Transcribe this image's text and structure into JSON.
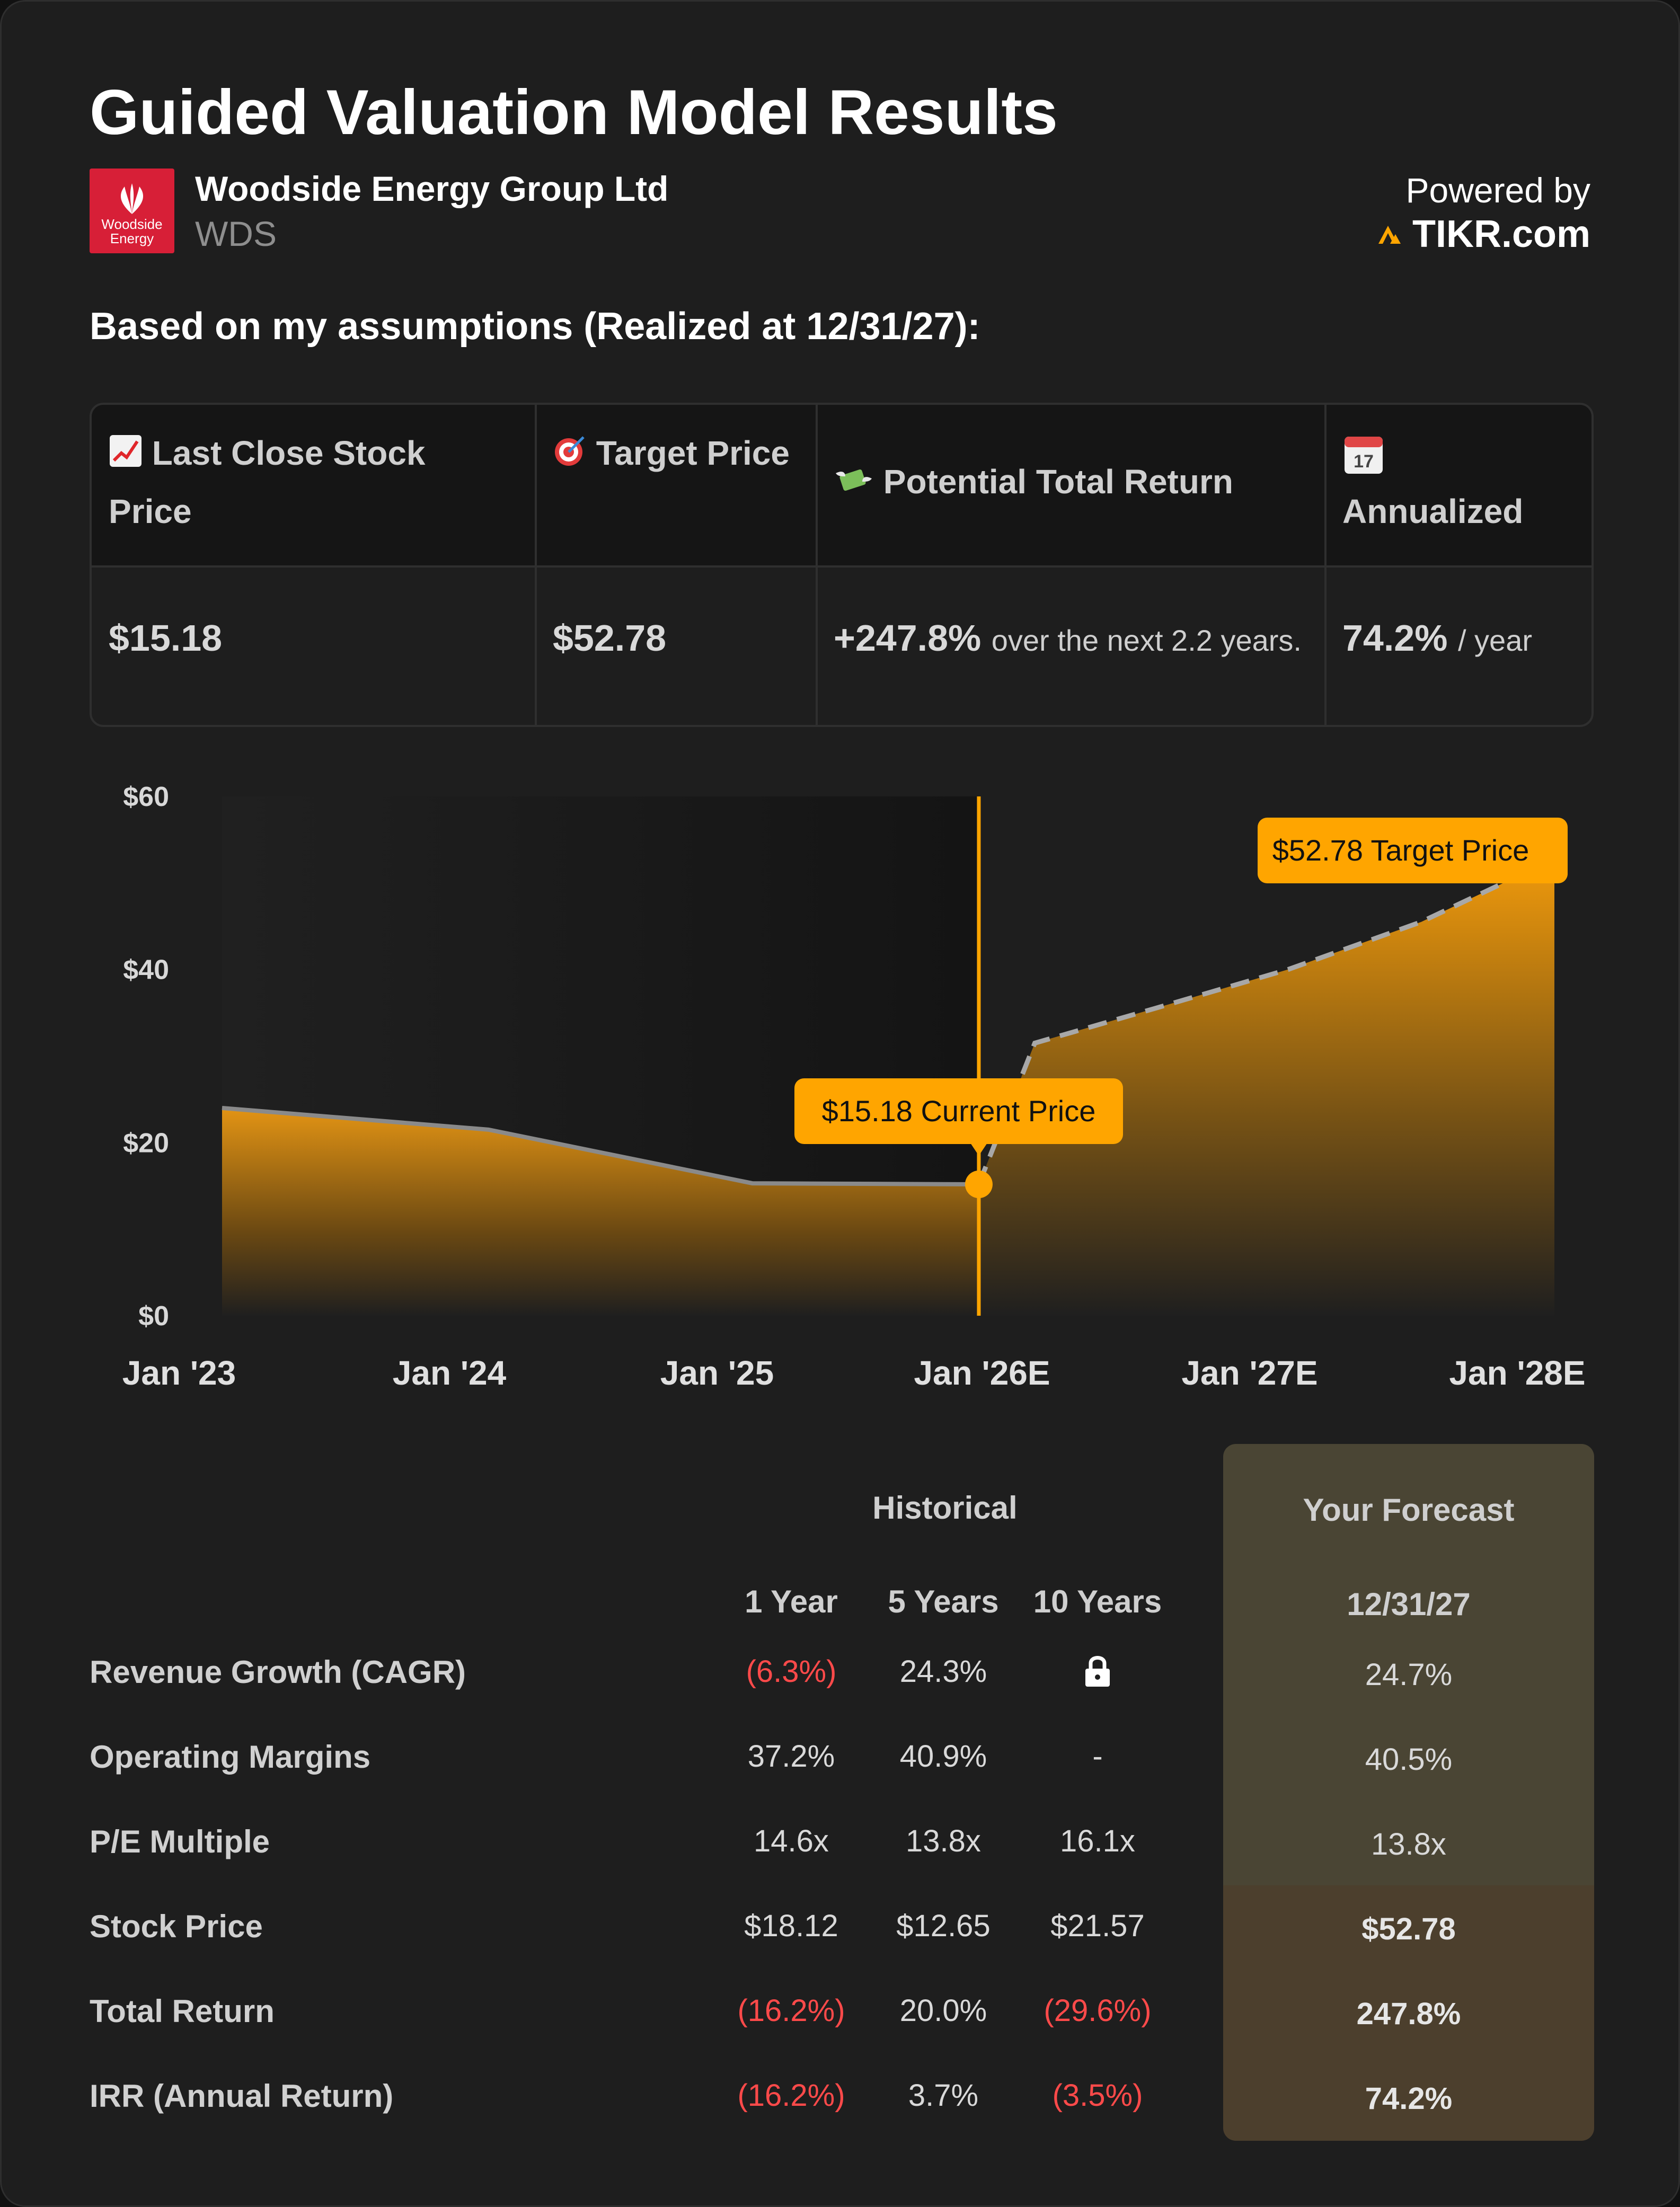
{
  "header": {
    "title": "Guided Valuation Model Results",
    "company_name": "Woodside Energy Group Ltd",
    "ticker": "WDS",
    "logo_text": "Woodside Energy",
    "powered_by": "Powered by",
    "brand": "TIKR.com"
  },
  "assumptions_label": "Based on my assumptions (Realized at 12/31/27):",
  "metrics": {
    "headers": [
      {
        "icon": "chart-increasing-icon",
        "label": "Last Close Stock Price"
      },
      {
        "icon": "target-icon",
        "label": "Target Price"
      },
      {
        "icon": "money-wings-icon",
        "label": "Potential Total Return"
      },
      {
        "icon": "calendar-icon",
        "label": "Annualized"
      }
    ],
    "last_close": "$15.18",
    "target_price": "$52.78",
    "total_return_value": "+247.8%",
    "total_return_note": "over the next 2.2 years.",
    "annualized_value": "74.2%",
    "annualized_unit": "/ year"
  },
  "chart_data": {
    "type": "area",
    "x_labels": [
      "Jan '23",
      "Jan '24",
      "Jan '25",
      "Jan '26E",
      "Jan '27E",
      "Jan '28E"
    ],
    "y_ticks": [
      "$0",
      "$20",
      "$40",
      "$60"
    ],
    "ylim": [
      0,
      60
    ],
    "historical": {
      "x": [
        2023.0,
        2024.0,
        2024.99,
        2025.84
      ],
      "y": [
        24,
        21.5,
        15.3,
        15.18
      ]
    },
    "forecast": {
      "x": [
        2025.84,
        2026.05,
        2026.5,
        2027.0,
        2027.5,
        2028.0
      ],
      "y": [
        15.18,
        31.5,
        35.5,
        40,
        45.5,
        52.78
      ]
    },
    "current_price_label": "$15.18 Current Price",
    "target_price_label": "$52.78 Target Price",
    "accent_color": "#ffa500"
  },
  "table": {
    "historical_label": "Historical",
    "forecast_label": "Your Forecast",
    "columns": [
      "1 Year",
      "5 Years",
      "10 Years"
    ],
    "forecast_date": "12/31/27",
    "rows": [
      {
        "label": "Revenue Growth (CAGR)",
        "values": [
          "(6.3%)",
          "24.3%",
          ""
        ],
        "forecast": "24.7%"
      },
      {
        "label": "Operating Margins",
        "values": [
          "37.2%",
          "40.9%",
          "-"
        ],
        "forecast": "40.5%"
      },
      {
        "label": "P/E Multiple",
        "values": [
          "14.6x",
          "13.8x",
          "16.1x"
        ],
        "forecast": "13.8x"
      },
      {
        "label": "Stock Price",
        "values": [
          "$18.12",
          "$12.65",
          "$21.57"
        ],
        "forecast": "$52.78"
      },
      {
        "label": "Total Return",
        "values": [
          "(16.2%)",
          "20.0%",
          "(29.6%)"
        ],
        "forecast": "247.8%"
      },
      {
        "label": "IRR (Annual Return)",
        "values": [
          "(16.2%)",
          "3.7%",
          "(3.5%)"
        ],
        "forecast": "74.2%"
      }
    ]
  }
}
